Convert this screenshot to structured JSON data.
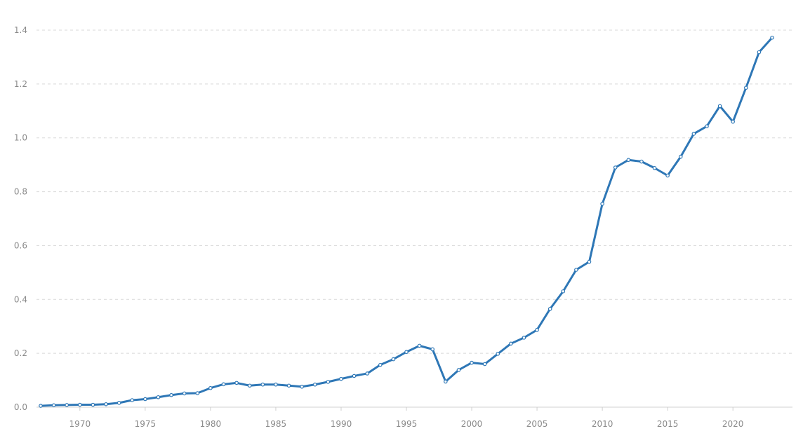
{
  "chart_data": {
    "type": "line",
    "title": "",
    "xlabel": "",
    "ylabel": "",
    "xlim": [
      1967,
      2023
    ],
    "ylim": [
      0,
      1.4
    ],
    "yticks": [
      "0.0",
      "0.2",
      "0.4",
      "0.6",
      "0.8",
      "1.0",
      "1.2",
      "1.4"
    ],
    "xticks": [
      "1970",
      "1975",
      "1980",
      "1985",
      "1990",
      "1995",
      "2000",
      "2005",
      "2010",
      "2015",
      "2020"
    ],
    "grid": true,
    "legend": "none",
    "color": "#2e77b6",
    "series": [
      {
        "name": "value",
        "x": [
          1967,
          1968,
          1969,
          1970,
          1971,
          1972,
          1973,
          1974,
          1975,
          1976,
          1977,
          1978,
          1979,
          1980,
          1981,
          1982,
          1983,
          1984,
          1985,
          1986,
          1987,
          1988,
          1989,
          1990,
          1991,
          1992,
          1993,
          1994,
          1995,
          1996,
          1997,
          1998,
          1999,
          2000,
          2001,
          2002,
          2003,
          2004,
          2005,
          2006,
          2007,
          2008,
          2009,
          2010,
          2011,
          2012,
          2013,
          2014,
          2015,
          2016,
          2017,
          2018,
          2019,
          2020,
          2021,
          2022,
          2023
        ],
        "values": [
          0.005,
          0.007,
          0.008,
          0.009,
          0.009,
          0.011,
          0.016,
          0.026,
          0.03,
          0.037,
          0.045,
          0.051,
          0.052,
          0.071,
          0.085,
          0.09,
          0.08,
          0.084,
          0.084,
          0.08,
          0.076,
          0.084,
          0.094,
          0.105,
          0.116,
          0.125,
          0.157,
          0.178,
          0.205,
          0.228,
          0.215,
          0.095,
          0.138,
          0.165,
          0.16,
          0.198,
          0.236,
          0.258,
          0.287,
          0.365,
          0.43,
          0.51,
          0.54,
          0.755,
          0.89,
          0.918,
          0.912,
          0.888,
          0.86,
          0.93,
          1.015,
          1.043,
          1.118,
          1.06,
          1.186,
          1.318,
          1.372
        ]
      }
    ]
  }
}
